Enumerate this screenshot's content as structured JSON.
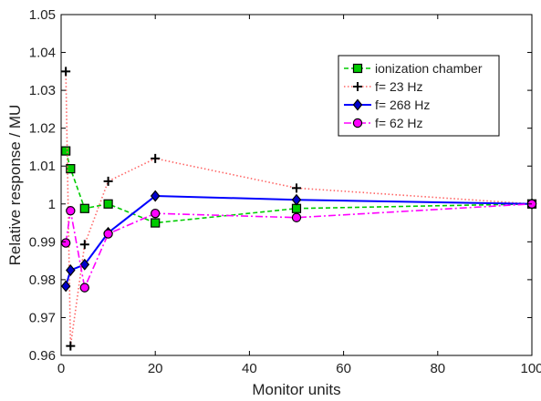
{
  "chart_data": {
    "type": "line",
    "title": "",
    "xlabel": "Monitor units",
    "ylabel": "Relative response / MU",
    "xlim": [
      0,
      100
    ],
    "ylim": [
      0.96,
      1.05
    ],
    "xticks": [
      0,
      20,
      40,
      60,
      80,
      100
    ],
    "yticks": [
      0.96,
      0.97,
      0.98,
      0.99,
      1.0,
      1.01,
      1.02,
      1.03,
      1.04,
      1.05
    ],
    "xtick_labels": [
      "0",
      "20",
      "40",
      "60",
      "80",
      "100"
    ],
    "ytick_labels": [
      "0.96",
      "0.97",
      "0.98",
      "0.99",
      "1",
      "1.01",
      "1.02",
      "1.03",
      "1.04",
      "1.05"
    ],
    "grid": false,
    "legend_position": "top-right",
    "series": [
      {
        "name": "ionization chamber",
        "color": "#00cc00",
        "line_style": "dashed",
        "marker": "square",
        "marker_fill": "#00cc00",
        "x": [
          1,
          2,
          5,
          10,
          20,
          50,
          100
        ],
        "y": [
          1.014,
          1.0093,
          0.9988,
          1.0,
          0.995,
          0.9988,
          1.0
        ]
      },
      {
        "name": "f= 23 Hz",
        "color": "#ff6666",
        "line_style": "dotted",
        "marker": "plus",
        "marker_fill": "#000000",
        "x": [
          1,
          2,
          5,
          10,
          20,
          50,
          100
        ],
        "y": [
          1.035,
          0.9625,
          0.9893,
          1.006,
          1.012,
          1.0042,
          1.0
        ]
      },
      {
        "name": "f= 268 Hz",
        "color": "#0000ff",
        "line_style": "solid",
        "marker": "diamond",
        "marker_fill": "#0000cc",
        "x": [
          1,
          2,
          5,
          10,
          20,
          50,
          100
        ],
        "y": [
          0.9783,
          0.9825,
          0.984,
          0.9924,
          1.0021,
          1.0011,
          1.0
        ]
      },
      {
        "name": "f= 62 Hz",
        "color": "#ff00ff",
        "line_style": "dashdot",
        "marker": "circle",
        "marker_fill": "#ff00ff",
        "x": [
          1,
          2,
          5,
          10,
          20,
          50,
          100
        ],
        "y": [
          0.9897,
          0.9982,
          0.9779,
          0.9921,
          0.9975,
          0.9964,
          1.0
        ]
      }
    ]
  }
}
